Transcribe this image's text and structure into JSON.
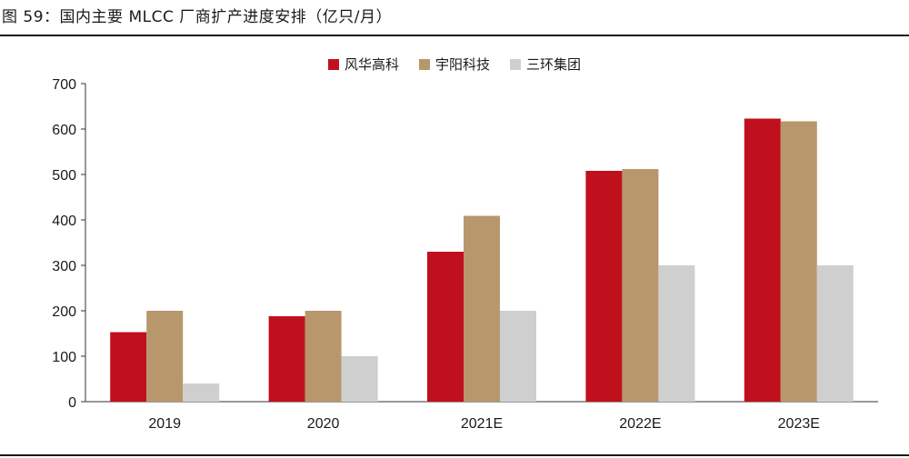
{
  "header": {
    "title": "图 59：国内主要 MLCC 厂商扩产进度安排（亿只/月）"
  },
  "colors": {
    "series_0": "#C0101E",
    "series_1": "#B8976C",
    "series_2": "#CFCFCF"
  },
  "chart_data": {
    "type": "bar",
    "categories": [
      "2019",
      "2020",
      "2021E",
      "2022E",
      "2023E"
    ],
    "series": [
      {
        "name": "风华高科",
        "values": [
          153,
          188,
          330,
          508,
          623
        ]
      },
      {
        "name": "宇阳科技",
        "values": [
          200,
          200,
          409,
          512,
          617
        ]
      },
      {
        "name": "三环集团",
        "values": [
          40,
          100,
          200,
          300,
          300
        ]
      }
    ],
    "ylim": [
      0,
      700
    ],
    "yticks": [
      0,
      100,
      200,
      300,
      400,
      500,
      600,
      700
    ],
    "legend": "top-center",
    "grid": false
  }
}
